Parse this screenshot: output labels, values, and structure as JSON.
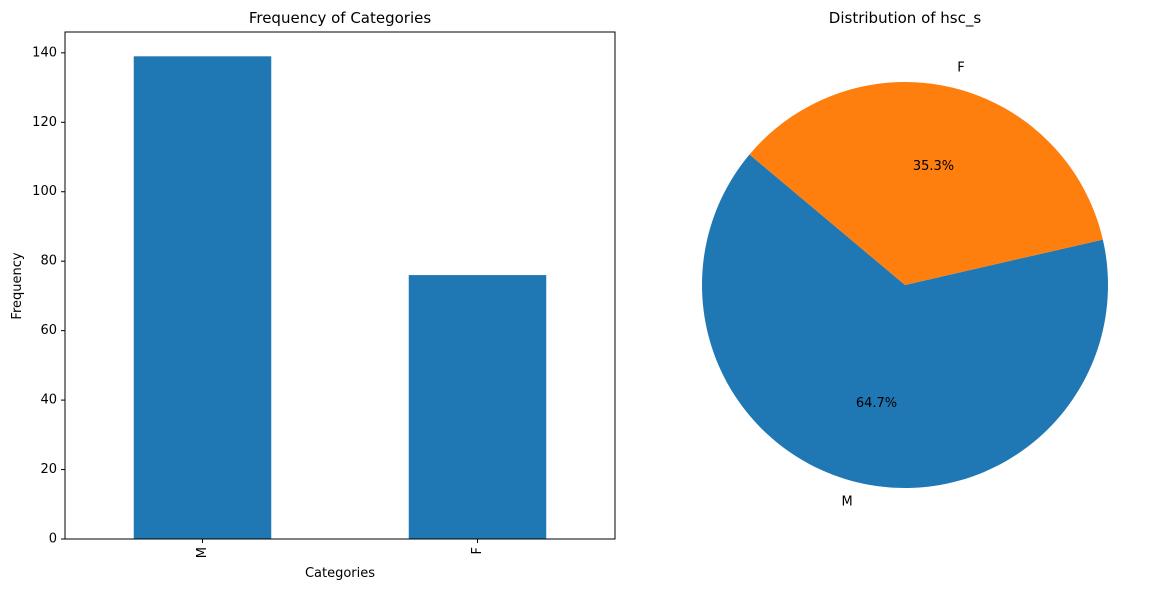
{
  "chart_data": [
    {
      "type": "bar",
      "title": "Frequency of Categories",
      "xlabel": "Categories",
      "ylabel": "Frequency",
      "categories": [
        "M",
        "F"
      ],
      "values": [
        139,
        76
      ],
      "ylim": [
        0,
        146
      ],
      "yticks": [
        0,
        20,
        40,
        60,
        80,
        100,
        120,
        140
      ],
      "color": "#1f77b4",
      "grid": false,
      "legend": "none"
    },
    {
      "type": "pie",
      "title": "Distribution of hsc_s",
      "labels": [
        "M",
        "F"
      ],
      "values": [
        64.7,
        35.3
      ],
      "autopct": [
        "64.7%",
        "35.3%"
      ],
      "colors": [
        "#1f77b4",
        "#ff7f0e"
      ],
      "legend": "none"
    }
  ]
}
